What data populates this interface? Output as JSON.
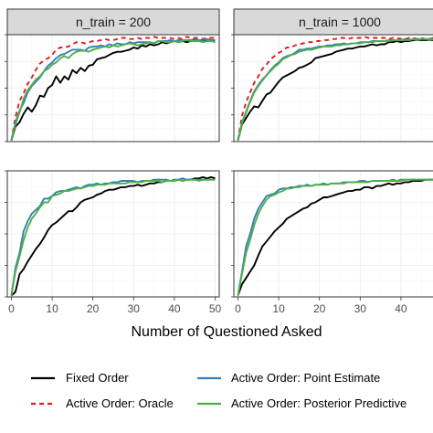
{
  "chart_data": [
    {
      "type": "line",
      "panel": "n_train = 200 (top)",
      "strip_label": "n_train = 200",
      "xlim": [
        -1,
        51
      ],
      "ylim": [
        0,
        1
      ],
      "x": [
        0,
        1,
        2,
        3,
        4,
        5,
        6,
        7,
        8,
        9,
        10,
        11,
        12,
        13,
        14,
        15,
        16,
        17,
        18,
        19,
        20,
        21,
        22,
        23,
        24,
        25,
        26,
        27,
        28,
        29,
        30,
        31,
        32,
        33,
        34,
        35,
        36,
        37,
        38,
        39,
        40,
        41,
        42,
        43,
        44,
        45,
        46,
        47,
        48,
        49,
        50
      ],
      "series": [
        {
          "name": "Fixed Order",
          "values": [
            0.01,
            0.14,
            0.18,
            0.26,
            0.32,
            0.28,
            0.34,
            0.43,
            0.42,
            0.5,
            0.53,
            0.61,
            0.55,
            0.61,
            0.58,
            0.67,
            0.64,
            0.69,
            0.66,
            0.71,
            0.72,
            0.77,
            0.78,
            0.79,
            0.81,
            0.83,
            0.84,
            0.84,
            0.85,
            0.86,
            0.88,
            0.87,
            0.9,
            0.89,
            0.91,
            0.9,
            0.91,
            0.93,
            0.92,
            0.93,
            0.94,
            0.93,
            0.94,
            0.93,
            0.94,
            0.95,
            0.95,
            0.95,
            0.94,
            0.94,
            0.94
          ]
        },
        {
          "name": "Active Order: Oracle",
          "values": [
            0.01,
            0.23,
            0.38,
            0.45,
            0.54,
            0.6,
            0.67,
            0.73,
            0.76,
            0.78,
            0.81,
            0.86,
            0.88,
            0.88,
            0.89,
            0.91,
            0.93,
            0.93,
            0.92,
            0.93,
            0.94,
            0.94,
            0.95,
            0.96,
            0.95,
            0.95,
            0.96,
            0.97,
            0.97,
            0.96,
            0.96,
            0.97,
            0.96,
            0.97,
            0.97,
            0.98,
            0.97,
            0.97,
            0.97,
            0.97,
            0.96,
            0.97,
            0.96,
            0.98,
            0.97,
            0.97,
            0.97,
            0.96,
            0.97,
            0.97,
            0.97
          ]
        },
        {
          "name": "Active Order: Point Estimate",
          "values": [
            0.01,
            0.18,
            0.29,
            0.36,
            0.46,
            0.52,
            0.56,
            0.6,
            0.66,
            0.71,
            0.74,
            0.78,
            0.81,
            0.82,
            0.84,
            0.86,
            0.86,
            0.86,
            0.85,
            0.88,
            0.89,
            0.89,
            0.9,
            0.89,
            0.91,
            0.9,
            0.92,
            0.91,
            0.91,
            0.93,
            0.92,
            0.93,
            0.93,
            0.93,
            0.93,
            0.92,
            0.94,
            0.94,
            0.94,
            0.95,
            0.94,
            0.95,
            0.95,
            0.95,
            0.95,
            0.96,
            0.95,
            0.95,
            0.96,
            0.95,
            0.95
          ]
        },
        {
          "name": "Active Order: Posterior Predictive",
          "values": [
            0.01,
            0.16,
            0.27,
            0.4,
            0.48,
            0.53,
            0.58,
            0.61,
            0.66,
            0.68,
            0.72,
            0.74,
            0.78,
            0.8,
            0.78,
            0.82,
            0.84,
            0.85,
            0.85,
            0.84,
            0.86,
            0.87,
            0.88,
            0.89,
            0.88,
            0.9,
            0.89,
            0.9,
            0.91,
            0.92,
            0.91,
            0.9,
            0.91,
            0.92,
            0.93,
            0.92,
            0.94,
            0.94,
            0.93,
            0.93,
            0.94,
            0.93,
            0.94,
            0.95,
            0.94,
            0.94,
            0.94,
            0.93,
            0.94,
            0.94,
            0.93
          ]
        }
      ]
    },
    {
      "type": "line",
      "panel": "n_train = 1000 (top)",
      "strip_label": "n_train = 1000",
      "xlim": [
        -1,
        51
      ],
      "ylim": [
        0,
        1
      ],
      "x": [
        0,
        1,
        2,
        3,
        4,
        5,
        6,
        7,
        8,
        9,
        10,
        11,
        12,
        13,
        14,
        15,
        16,
        17,
        18,
        19,
        20,
        21,
        22,
        23,
        24,
        25,
        26,
        27,
        28,
        29,
        30,
        31,
        32,
        33,
        34,
        35,
        36,
        37,
        38,
        39,
        40,
        41,
        42,
        43,
        44,
        45,
        46,
        47,
        48,
        49,
        50
      ],
      "series": [
        {
          "name": "Fixed Order",
          "values": [
            0.01,
            0.16,
            0.22,
            0.28,
            0.33,
            0.32,
            0.38,
            0.44,
            0.46,
            0.51,
            0.56,
            0.6,
            0.62,
            0.64,
            0.66,
            0.69,
            0.7,
            0.72,
            0.74,
            0.78,
            0.79,
            0.8,
            0.81,
            0.82,
            0.84,
            0.85,
            0.86,
            0.87,
            0.87,
            0.88,
            0.89,
            0.89,
            0.9,
            0.91,
            0.9,
            0.91,
            0.91,
            0.93,
            0.93,
            0.94,
            0.93,
            0.94,
            0.94,
            0.95,
            0.95,
            0.95,
            0.95,
            0.95,
            0.95,
            0.95,
            0.95
          ]
        },
        {
          "name": "Active Order: Oracle",
          "values": [
            0.01,
            0.24,
            0.37,
            0.46,
            0.55,
            0.61,
            0.68,
            0.72,
            0.77,
            0.8,
            0.83,
            0.85,
            0.88,
            0.88,
            0.9,
            0.91,
            0.92,
            0.93,
            0.93,
            0.94,
            0.94,
            0.95,
            0.95,
            0.96,
            0.96,
            0.97,
            0.97,
            0.96,
            0.97,
            0.97,
            0.97,
            0.98,
            0.97,
            0.97,
            0.97,
            0.97,
            0.97,
            0.96,
            0.97,
            0.97,
            0.96,
            0.96,
            0.97,
            0.97,
            0.96,
            0.97,
            0.96,
            0.96,
            0.97,
            0.96,
            0.96
          ]
        },
        {
          "name": "Active Order: Point Estimate",
          "values": [
            0.01,
            0.18,
            0.28,
            0.38,
            0.47,
            0.53,
            0.58,
            0.62,
            0.67,
            0.71,
            0.74,
            0.78,
            0.8,
            0.81,
            0.83,
            0.86,
            0.86,
            0.87,
            0.87,
            0.88,
            0.89,
            0.89,
            0.9,
            0.9,
            0.91,
            0.91,
            0.92,
            0.91,
            0.92,
            0.92,
            0.93,
            0.93,
            0.93,
            0.94,
            0.94,
            0.94,
            0.94,
            0.95,
            0.95,
            0.95,
            0.95,
            0.96,
            0.95,
            0.96,
            0.96,
            0.96,
            0.96,
            0.96,
            0.96,
            0.96,
            0.96
          ]
        },
        {
          "name": "Active Order: Posterior Predictive",
          "values": [
            0.01,
            0.17,
            0.27,
            0.37,
            0.46,
            0.52,
            0.57,
            0.62,
            0.66,
            0.7,
            0.73,
            0.77,
            0.79,
            0.81,
            0.82,
            0.84,
            0.85,
            0.86,
            0.86,
            0.87,
            0.88,
            0.89,
            0.89,
            0.89,
            0.9,
            0.9,
            0.91,
            0.91,
            0.92,
            0.92,
            0.92,
            0.93,
            0.93,
            0.93,
            0.94,
            0.94,
            0.94,
            0.94,
            0.95,
            0.95,
            0.95,
            0.95,
            0.95,
            0.96,
            0.95,
            0.96,
            0.96,
            0.95,
            0.96,
            0.96,
            0.96
          ]
        }
      ]
    },
    {
      "type": "line",
      "panel": "n_train = 200 (bottom)",
      "xlim": [
        -1,
        51
      ],
      "ylim": [
        0,
        1
      ],
      "xticks": [
        0,
        10,
        20,
        30,
        40,
        50
      ],
      "x": [
        0,
        1,
        2,
        3,
        4,
        5,
        6,
        7,
        8,
        9,
        10,
        11,
        12,
        13,
        14,
        15,
        16,
        17,
        18,
        19,
        20,
        21,
        22,
        23,
        24,
        25,
        26,
        27,
        28,
        29,
        30,
        31,
        32,
        33,
        34,
        35,
        36,
        37,
        38,
        39,
        40,
        41,
        42,
        43,
        44,
        45,
        46,
        47,
        48,
        49,
        50
      ],
      "series": [
        {
          "name": "Fixed Order",
          "values": [
            0.01,
            0.04,
            0.18,
            0.22,
            0.28,
            0.33,
            0.38,
            0.42,
            0.47,
            0.53,
            0.57,
            0.59,
            0.62,
            0.65,
            0.68,
            0.68,
            0.71,
            0.75,
            0.77,
            0.78,
            0.79,
            0.81,
            0.82,
            0.84,
            0.85,
            0.85,
            0.86,
            0.87,
            0.87,
            0.88,
            0.88,
            0.89,
            0.88,
            0.89,
            0.9,
            0.9,
            0.91,
            0.91,
            0.92,
            0.92,
            0.92,
            0.93,
            0.92,
            0.93,
            0.93,
            0.94,
            0.94,
            0.95,
            0.94,
            0.95,
            0.94
          ]
        },
        {
          "name": "Active Order: Point Estimate",
          "values": [
            0.01,
            0.23,
            0.35,
            0.52,
            0.6,
            0.66,
            0.69,
            0.72,
            0.78,
            0.78,
            0.8,
            0.83,
            0.84,
            0.84,
            0.85,
            0.86,
            0.87,
            0.86,
            0.88,
            0.89,
            0.89,
            0.9,
            0.89,
            0.9,
            0.9,
            0.91,
            0.91,
            0.92,
            0.92,
            0.92,
            0.92,
            0.91,
            0.92,
            0.92,
            0.92,
            0.93,
            0.93,
            0.93,
            0.93,
            0.92,
            0.93,
            0.93,
            0.94,
            0.93,
            0.93,
            0.93,
            0.93,
            0.93,
            0.93,
            0.93,
            0.93
          ]
        },
        {
          "name": "Active Order: Posterior Predictive",
          "values": [
            0.01,
            0.2,
            0.32,
            0.45,
            0.55,
            0.62,
            0.66,
            0.71,
            0.75,
            0.75,
            0.8,
            0.81,
            0.82,
            0.84,
            0.84,
            0.85,
            0.86,
            0.86,
            0.87,
            0.88,
            0.88,
            0.89,
            0.89,
            0.89,
            0.9,
            0.9,
            0.9,
            0.9,
            0.9,
            0.91,
            0.91,
            0.91,
            0.91,
            0.92,
            0.92,
            0.92,
            0.92,
            0.91,
            0.92,
            0.92,
            0.92,
            0.93,
            0.92,
            0.93,
            0.93,
            0.93,
            0.92,
            0.93,
            0.93,
            0.93,
            0.93
          ]
        }
      ]
    },
    {
      "type": "line",
      "panel": "n_train = 1000 (bottom)",
      "xlim": [
        -1,
        51
      ],
      "ylim": [
        0,
        1
      ],
      "xticks": [
        0,
        10,
        20,
        30,
        40
      ],
      "x": [
        0,
        1,
        2,
        3,
        4,
        5,
        6,
        7,
        8,
        9,
        10,
        11,
        12,
        13,
        14,
        15,
        16,
        17,
        18,
        19,
        20,
        21,
        22,
        23,
        24,
        25,
        26,
        27,
        28,
        29,
        30,
        31,
        32,
        33,
        34,
        35,
        36,
        37,
        38,
        39,
        40,
        41,
        42,
        43,
        44,
        45,
        46,
        47,
        48,
        49,
        50
      ],
      "series": [
        {
          "name": "Fixed Order",
          "values": [
            0.01,
            0.1,
            0.15,
            0.2,
            0.25,
            0.33,
            0.4,
            0.44,
            0.48,
            0.52,
            0.55,
            0.58,
            0.62,
            0.64,
            0.66,
            0.68,
            0.7,
            0.71,
            0.74,
            0.75,
            0.77,
            0.79,
            0.79,
            0.8,
            0.81,
            0.82,
            0.83,
            0.84,
            0.84,
            0.85,
            0.85,
            0.87,
            0.87,
            0.86,
            0.88,
            0.88,
            0.89,
            0.9,
            0.89,
            0.9,
            0.9,
            0.91,
            0.91,
            0.92,
            0.92,
            0.92,
            0.93,
            0.93,
            0.93,
            0.93,
            0.93
          ]
        },
        {
          "name": "Active Order: Point Estimate",
          "values": [
            0.01,
            0.2,
            0.4,
            0.5,
            0.62,
            0.7,
            0.75,
            0.8,
            0.81,
            0.82,
            0.85,
            0.86,
            0.86,
            0.87,
            0.87,
            0.88,
            0.88,
            0.89,
            0.88,
            0.89,
            0.89,
            0.9,
            0.89,
            0.9,
            0.9,
            0.9,
            0.91,
            0.91,
            0.91,
            0.91,
            0.92,
            0.92,
            0.91,
            0.92,
            0.92,
            0.92,
            0.92,
            0.92,
            0.93,
            0.92,
            0.93,
            0.93,
            0.93,
            0.93,
            0.93,
            0.93,
            0.93,
            0.93,
            0.93,
            0.94,
            0.94
          ]
        },
        {
          "name": "Active Order: Posterior Predictive",
          "values": [
            0.01,
            0.18,
            0.35,
            0.45,
            0.57,
            0.66,
            0.72,
            0.77,
            0.8,
            0.81,
            0.83,
            0.84,
            0.86,
            0.86,
            0.87,
            0.87,
            0.88,
            0.88,
            0.88,
            0.89,
            0.89,
            0.89,
            0.89,
            0.9,
            0.9,
            0.9,
            0.9,
            0.91,
            0.91,
            0.91,
            0.91,
            0.91,
            0.91,
            0.92,
            0.92,
            0.92,
            0.92,
            0.92,
            0.92,
            0.92,
            0.92,
            0.93,
            0.93,
            0.93,
            0.93,
            0.93,
            0.93,
            0.93,
            0.93,
            0.93,
            0.93
          ]
        }
      ]
    }
  ],
  "xlabel": "Number of Questioned Asked",
  "legend": {
    "placement": "bottom",
    "items": [
      {
        "label": "Fixed Order",
        "color": "#000000",
        "dash": false
      },
      {
        "label": "Active Order: Point Estimate",
        "color": "#377eb8",
        "dash": false
      },
      {
        "label": "Active Order: Oracle",
        "color": "#e41a1c",
        "dash": true
      },
      {
        "label": "Active Order: Posterior Predictive",
        "color": "#4daf4a",
        "dash": false
      }
    ]
  },
  "colors": {
    "Fixed Order": "#000000",
    "Active Order: Oracle": "#e41a1c",
    "Active Order: Point Estimate": "#377eb8",
    "Active Order: Posterior Predictive": "#4daf4a",
    "strip_fill": "#d9d9d9",
    "grid": "#ebebeb",
    "panel_border": "#333333"
  }
}
